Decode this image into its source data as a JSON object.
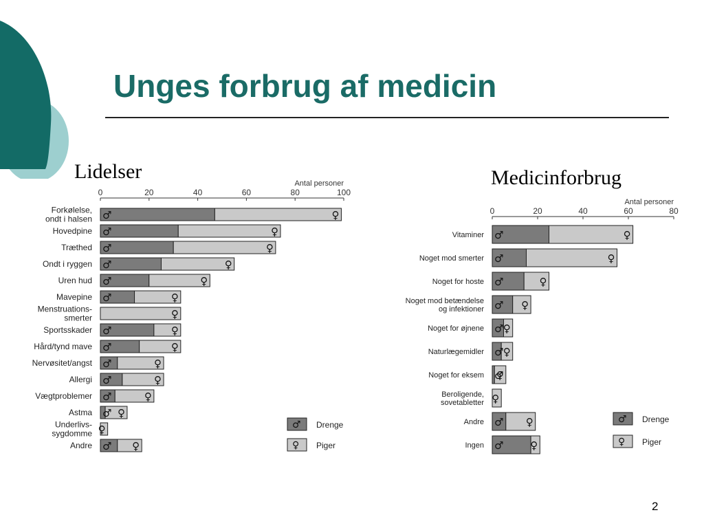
{
  "slide": {
    "title": "Unges forbrug af medicin",
    "page_number": "2"
  },
  "chart_data": [
    {
      "type": "bar",
      "stacked": true,
      "orientation": "horizontal",
      "caption": "Lidelser",
      "xlabel": "Antal personer",
      "xlim": [
        0,
        100
      ],
      "xticks": [
        "0",
        "20",
        "40",
        "60",
        "80",
        "100"
      ],
      "categories": [
        "Forkølelse,\nondt i halsen",
        "Hovedpine",
        "Træthed",
        "Ondt i ryggen",
        "Uren hud",
        "Mavepine",
        "Menstruations-\nsmerter",
        "Sportsskader",
        "Hård/tynd mave",
        "Nervøsitet/angst",
        "Allergi",
        "Vægtproblemer",
        "Astma",
        "Underlivs-\nsygdomme",
        "Andre"
      ],
      "series": [
        {
          "name": "Drenge",
          "values": [
            47,
            32,
            30,
            25,
            20,
            14,
            0,
            22,
            16,
            7,
            9,
            6,
            2,
            0,
            7
          ]
        },
        {
          "name": "Piger",
          "values": [
            52,
            42,
            42,
            30,
            25,
            19,
            33,
            11,
            17,
            19,
            17,
            16,
            9,
            3,
            10
          ]
        }
      ],
      "legend": {
        "position": "bottom-right",
        "entries": [
          "Drenge",
          "Piger"
        ]
      }
    },
    {
      "type": "bar",
      "stacked": true,
      "orientation": "horizontal",
      "caption": "Medicinforbrug",
      "xlabel": "Antal personer",
      "xlim": [
        0,
        80
      ],
      "xticks": [
        "0",
        "20",
        "40",
        "60",
        "80"
      ],
      "categories": [
        "Vitaminer",
        "Noget mod smerter",
        "Noget for hoste",
        "Noget mod betændelse\nog infektioner",
        "Noget for øjnene",
        "Naturlægemidler",
        "Noget for eksem",
        "Beroligende,\nsovetabletter",
        "Andre",
        "Ingen"
      ],
      "series": [
        {
          "name": "Drenge",
          "values": [
            25,
            15,
            14,
            9,
            5,
            4,
            1,
            0,
            6,
            17
          ]
        },
        {
          "name": "Piger",
          "values": [
            37,
            40,
            11,
            8,
            4,
            5,
            5,
            4,
            13,
            4
          ]
        }
      ],
      "legend": {
        "position": "bottom-right",
        "entries": [
          "Drenge",
          "Piger"
        ]
      }
    }
  ],
  "colors": {
    "accent": "#1a6b66",
    "deco_dark": "#136b66",
    "deco_light": "#9dcfcf",
    "drenge_fill": "#7b7b7b",
    "piger_fill": "#c9c9c9"
  }
}
